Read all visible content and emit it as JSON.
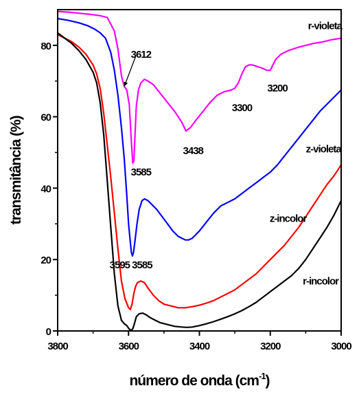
{
  "chart_data": {
    "type": "line",
    "xlabel": "número de onda (cm",
    "xlabel_sup": "-1",
    "xlabel_close": ")",
    "ylabel": "transmitância (%)",
    "xlim": [
      3800,
      3000
    ],
    "ylim": [
      0,
      90
    ],
    "xticks": [
      3800,
      3600,
      3400,
      3200,
      3000
    ],
    "yticks": [
      0,
      20,
      40,
      60,
      80
    ],
    "legend": "none",
    "grid": false,
    "series": [
      {
        "name": "r-violeta",
        "color": "#ff00ff",
        "x": [
          3800,
          3770,
          3740,
          3710,
          3680,
          3660,
          3640,
          3630,
          3620,
          3615,
          3612,
          3605,
          3598,
          3592,
          3588,
          3585,
          3582,
          3578,
          3572,
          3565,
          3555,
          3545,
          3530,
          3510,
          3490,
          3470,
          3450,
          3438,
          3425,
          3410,
          3390,
          3370,
          3350,
          3330,
          3310,
          3300,
          3290,
          3280,
          3270,
          3260,
          3250,
          3235,
          3220,
          3210,
          3200,
          3195,
          3185,
          3170,
          3150,
          3120,
          3100,
          3080,
          3050,
          3030,
          3000
        ],
        "y": [
          89.5,
          89.3,
          89.0,
          88.7,
          88.3,
          87.8,
          84.0,
          79.0,
          71.5,
          69.5,
          68.5,
          67.5,
          63.5,
          53.0,
          47.0,
          47.5,
          54.0,
          63.0,
          67.5,
          69.5,
          70.5,
          70.0,
          69.0,
          66.5,
          64.0,
          61.5,
          58.5,
          56.0,
          57.0,
          59.0,
          61.5,
          64.0,
          66.0,
          67.0,
          67.5,
          68.0,
          69.5,
          72.0,
          74.0,
          74.5,
          74.5,
          74.0,
          73.5,
          73.0,
          73.0,
          74.0,
          76.0,
          77.5,
          78.5,
          79.5,
          80.0,
          80.5,
          81.0,
          81.5,
          82.0
        ]
      },
      {
        "name": "z-violeta",
        "color": "#0000ff",
        "x": [
          3800,
          3770,
          3740,
          3715,
          3695,
          3680,
          3665,
          3650,
          3640,
          3630,
          3620,
          3612,
          3605,
          3600,
          3595,
          3592,
          3589,
          3586,
          3582,
          3576,
          3570,
          3562,
          3555,
          3545,
          3535,
          3520,
          3505,
          3490,
          3475,
          3460,
          3450,
          3440,
          3430,
          3420,
          3400,
          3380,
          3360,
          3340,
          3320,
          3300,
          3280,
          3260,
          3240,
          3220,
          3200,
          3180,
          3160,
          3140,
          3120,
          3100,
          3080,
          3060,
          3040,
          3020,
          3000
        ],
        "y": [
          87.5,
          87.0,
          86.3,
          85.5,
          84.5,
          83.5,
          82.0,
          78.0,
          73.0,
          66.0,
          57.0,
          48.0,
          38.0,
          30.0,
          25.0,
          22.0,
          21.0,
          22.0,
          25.0,
          30.0,
          34.0,
          36.5,
          37.0,
          36.5,
          35.5,
          34.0,
          32.0,
          30.0,
          28.0,
          26.5,
          26.0,
          25.5,
          25.5,
          26.0,
          28.0,
          30.5,
          33.0,
          35.0,
          36.0,
          37.0,
          38.5,
          40.0,
          41.5,
          43.0,
          44.5,
          46.5,
          49.0,
          51.5,
          54.0,
          56.5,
          59.0,
          61.5,
          63.5,
          65.5,
          67.5
        ]
      },
      {
        "name": "z-incolor",
        "color": "#ff0000",
        "x": [
          3800,
          3780,
          3760,
          3740,
          3720,
          3700,
          3690,
          3680,
          3670,
          3660,
          3650,
          3640,
          3630,
          3620,
          3610,
          3600,
          3595,
          3590,
          3585,
          3580,
          3575,
          3565,
          3555,
          3545,
          3530,
          3515,
          3500,
          3480,
          3460,
          3440,
          3420,
          3400,
          3380,
          3360,
          3340,
          3320,
          3300,
          3280,
          3260,
          3240,
          3220,
          3200,
          3180,
          3160,
          3140,
          3120,
          3100,
          3080,
          3060,
          3040,
          3020,
          3000
        ],
        "y": [
          83.0,
          82.0,
          81.0,
          79.5,
          77.5,
          74.5,
          72.0,
          68.0,
          61.0,
          52.0,
          43.0,
          33.0,
          23.0,
          14.0,
          9.0,
          6.5,
          6.0,
          7.5,
          10.5,
          12.5,
          13.5,
          14.0,
          13.5,
          12.0,
          10.0,
          8.5,
          7.5,
          7.0,
          6.5,
          6.5,
          6.8,
          7.2,
          7.8,
          8.5,
          9.5,
          10.5,
          11.5,
          13.0,
          14.5,
          16.0,
          18.0,
          20.0,
          22.0,
          24.0,
          26.5,
          29.0,
          32.0,
          35.0,
          38.0,
          41.0,
          43.5,
          46.5
        ]
      },
      {
        "name": "r-incolor",
        "color": "#000000",
        "x": [
          3800,
          3780,
          3760,
          3740,
          3720,
          3700,
          3690,
          3680,
          3670,
          3660,
          3650,
          3640,
          3630,
          3620,
          3612,
          3605,
          3598,
          3592,
          3588,
          3585,
          3582,
          3578,
          3570,
          3560,
          3550,
          3540,
          3525,
          3510,
          3490,
          3470,
          3450,
          3435,
          3420,
          3400,
          3380,
          3360,
          3340,
          3320,
          3300,
          3280,
          3260,
          3240,
          3220,
          3200,
          3180,
          3160,
          3140,
          3120,
          3100,
          3080,
          3060,
          3040,
          3020,
          3000
        ],
        "y": [
          83.5,
          82.0,
          80.5,
          78.5,
          76.0,
          72.5,
          69.5,
          64.0,
          55.0,
          42.0,
          29.0,
          16.0,
          7.0,
          3.0,
          2.0,
          1.5,
          0.5,
          0.2,
          0.6,
          1.5,
          2.5,
          4.0,
          4.8,
          5.0,
          4.5,
          3.8,
          3.0,
          2.3,
          1.8,
          1.3,
          1.1,
          1.0,
          1.1,
          1.5,
          2.0,
          2.6,
          3.3,
          4.0,
          4.8,
          5.7,
          6.8,
          8.0,
          9.5,
          11.0,
          12.5,
          14.0,
          15.5,
          17.5,
          20.0,
          23.0,
          26.0,
          29.0,
          32.5,
          36.5
        ]
      }
    ],
    "annotations": [
      {
        "text": "3612",
        "x": 3565,
        "y": 77.5,
        "arrow_to": [
          3612,
          68.5
        ]
      },
      {
        "text": "3585",
        "x": 3565,
        "y": 44.5
      },
      {
        "text": "3438",
        "x": 3418,
        "y": 50.5
      },
      {
        "text": "3300",
        "x": 3280,
        "y": 62.5
      },
      {
        "text": "3200",
        "x": 3180,
        "y": 68.0
      },
      {
        "text": "r-violeta",
        "x": 3046,
        "y": 85.5
      },
      {
        "text": "z-violeta",
        "x": 3050,
        "y": 51.0
      },
      {
        "text": "z-incolor",
        "x": 3150,
        "y": 31.5
      },
      {
        "text": "r-incolor",
        "x": 3058,
        "y": 14.0
      },
      {
        "text": "3595",
        "x": 3625,
        "y": 18.5
      },
      {
        "text": "3585",
        "x": 3562,
        "y": 18.5
      }
    ]
  }
}
